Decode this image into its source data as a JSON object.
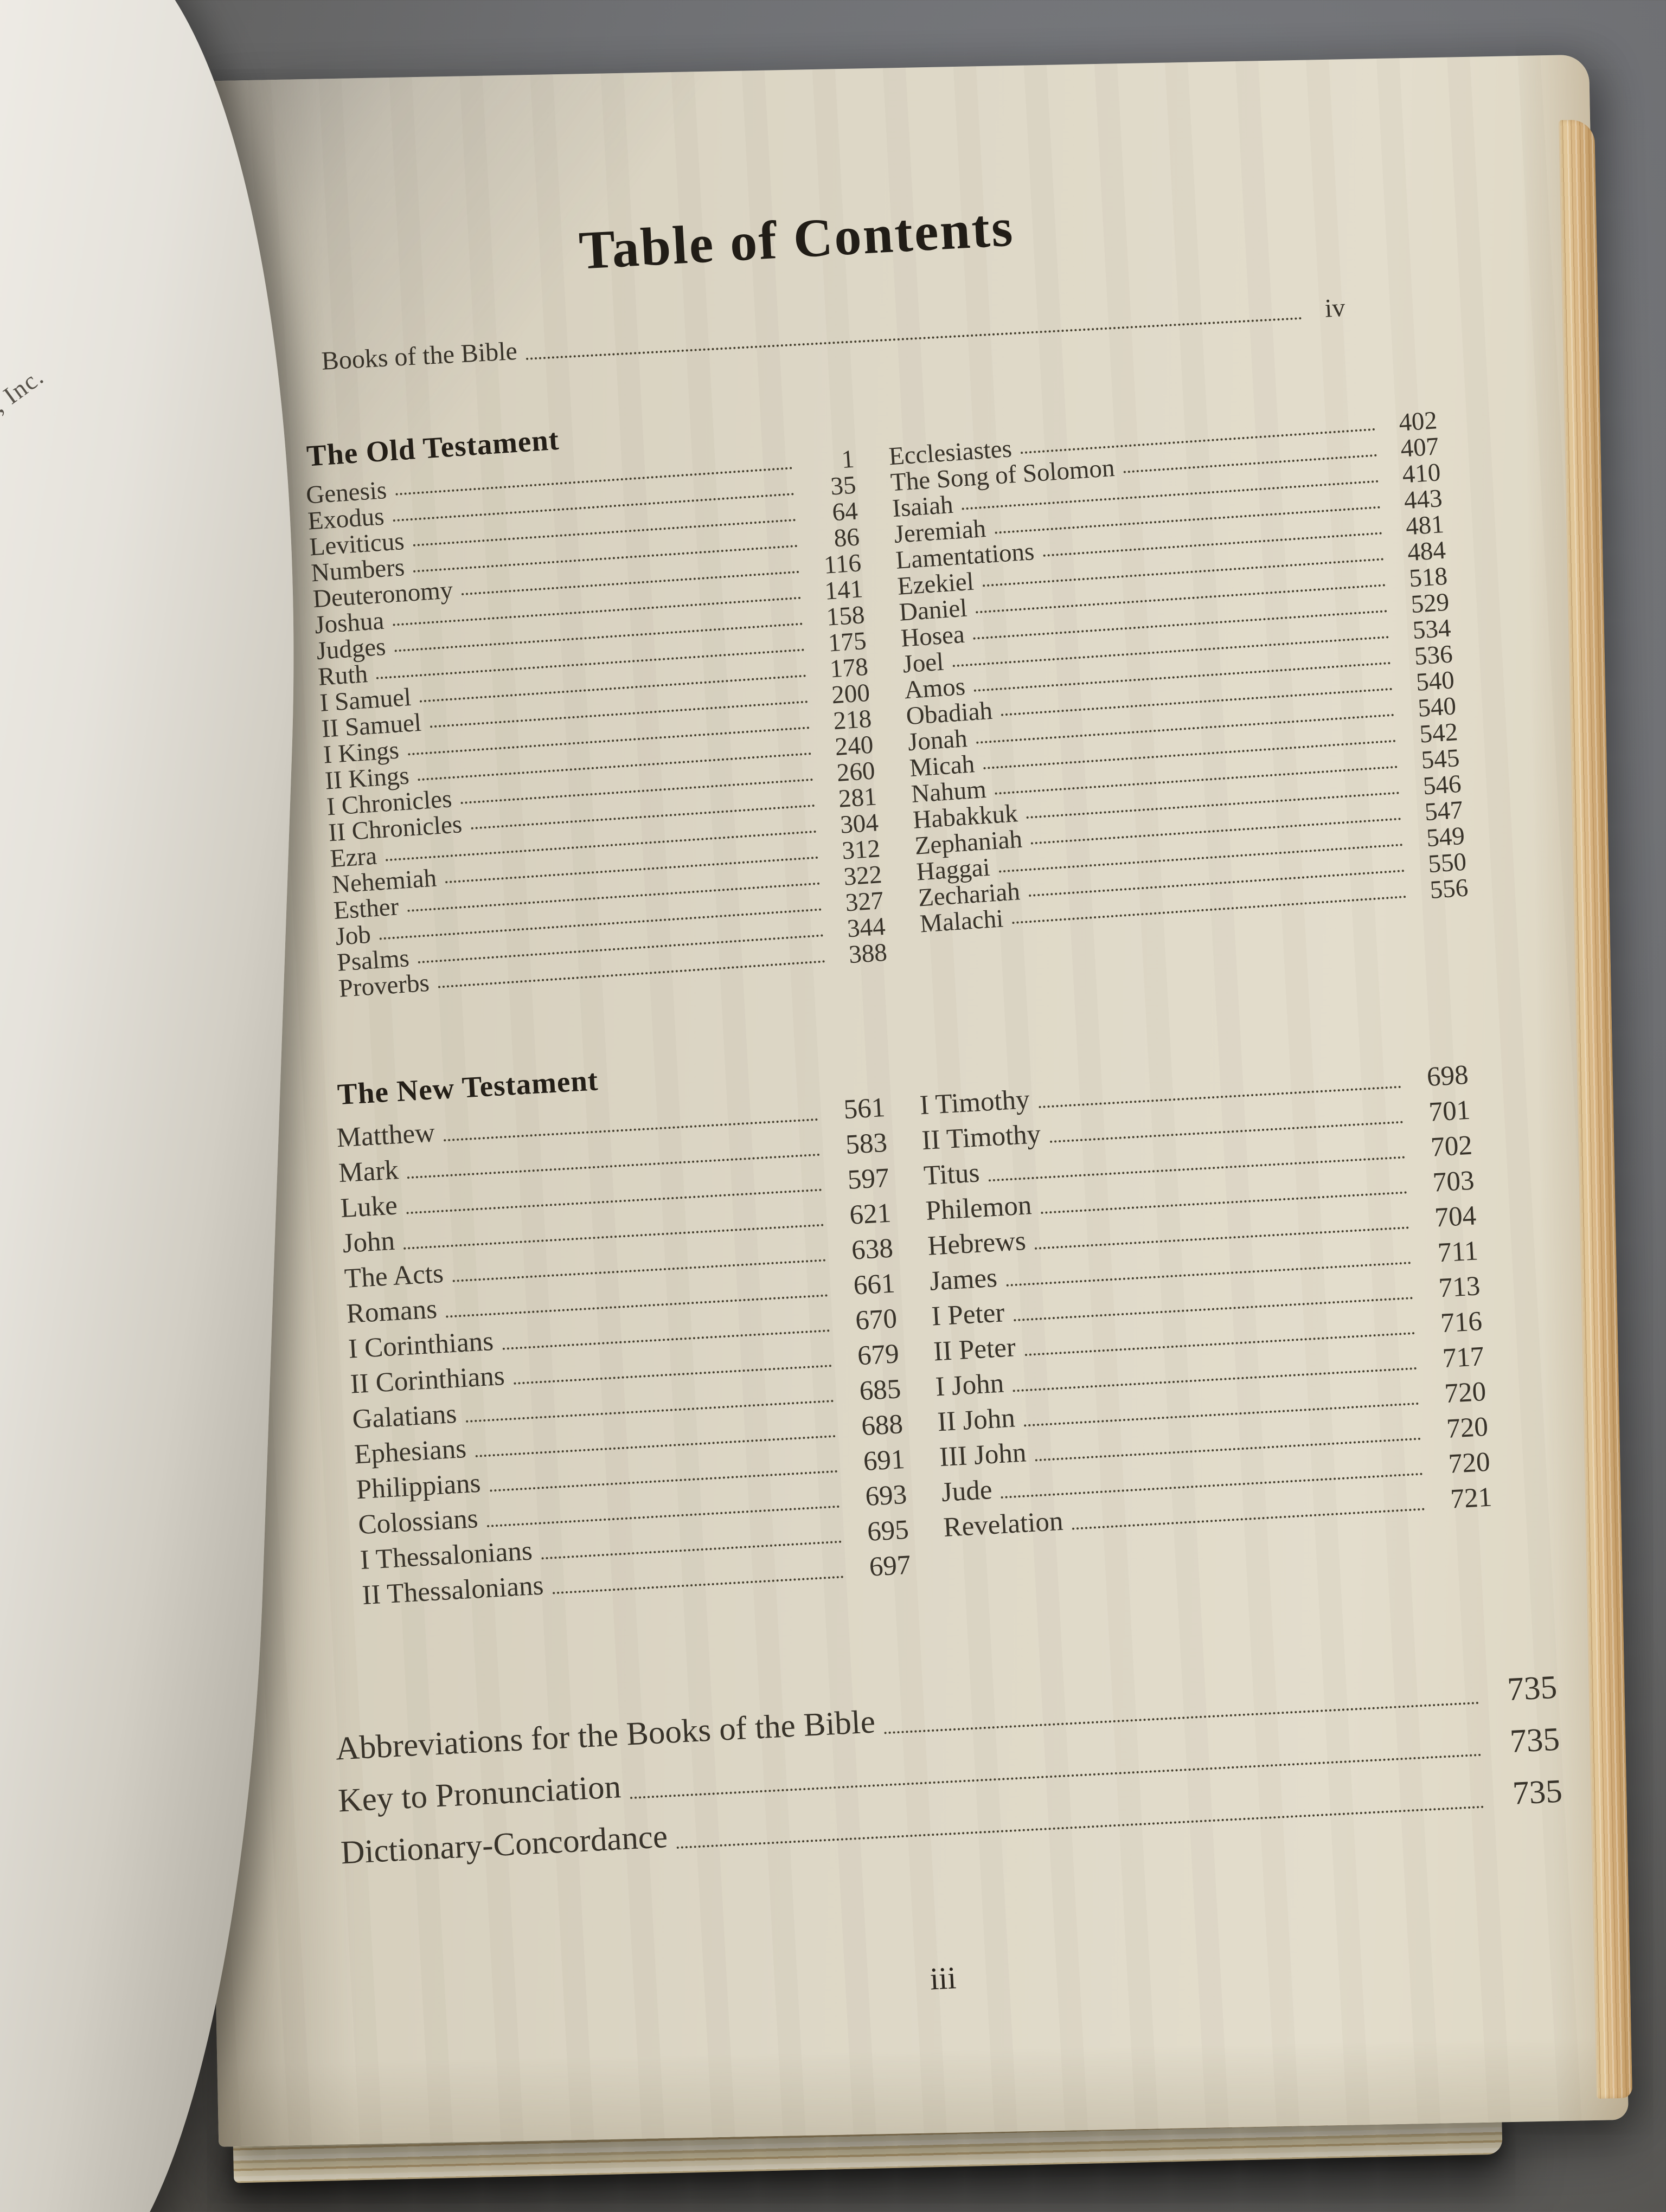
{
  "title": "Table of Contents",
  "frontmatter": {
    "label": "Books of the Bible",
    "page": "iv"
  },
  "old_testament": {
    "header": "The Old Testament",
    "left": [
      {
        "label": "Genesis",
        "page": "1"
      },
      {
        "label": "Exodus",
        "page": "35"
      },
      {
        "label": "Leviticus",
        "page": "64"
      },
      {
        "label": "Numbers",
        "page": "86"
      },
      {
        "label": "Deuteronomy",
        "page": "116"
      },
      {
        "label": "Joshua",
        "page": "141"
      },
      {
        "label": "Judges",
        "page": "158"
      },
      {
        "label": "Ruth",
        "page": "175"
      },
      {
        "label": "I Samuel",
        "page": "178"
      },
      {
        "label": "II Samuel",
        "page": "200"
      },
      {
        "label": "I Kings",
        "page": "218"
      },
      {
        "label": "II Kings",
        "page": "240"
      },
      {
        "label": "I Chronicles",
        "page": "260"
      },
      {
        "label": "II Chronicles",
        "page": "281"
      },
      {
        "label": "Ezra",
        "page": "304"
      },
      {
        "label": "Nehemiah",
        "page": "312"
      },
      {
        "label": "Esther",
        "page": "322"
      },
      {
        "label": "Job",
        "page": "327"
      },
      {
        "label": "Psalms",
        "page": "344"
      },
      {
        "label": "Proverbs",
        "page": "388"
      }
    ],
    "right": [
      {
        "label": "Ecclesiastes",
        "page": "402"
      },
      {
        "label": "The Song of Solomon",
        "page": "407"
      },
      {
        "label": "Isaiah",
        "page": "410"
      },
      {
        "label": "Jeremiah",
        "page": "443"
      },
      {
        "label": "Lamentations",
        "page": "481"
      },
      {
        "label": "Ezekiel",
        "page": "484"
      },
      {
        "label": "Daniel",
        "page": "518"
      },
      {
        "label": "Hosea",
        "page": "529"
      },
      {
        "label": "Joel",
        "page": "534"
      },
      {
        "label": "Amos",
        "page": "536"
      },
      {
        "label": "Obadiah",
        "page": "540"
      },
      {
        "label": "Jonah",
        "page": "540"
      },
      {
        "label": "Micah",
        "page": "542"
      },
      {
        "label": "Nahum",
        "page": "545"
      },
      {
        "label": "Habakkuk",
        "page": "546"
      },
      {
        "label": "Zephaniah",
        "page": "547"
      },
      {
        "label": "Haggai",
        "page": "549"
      },
      {
        "label": "Zechariah",
        "page": "550"
      },
      {
        "label": "Malachi",
        "page": "556"
      }
    ]
  },
  "new_testament": {
    "header": "The New Testament",
    "left": [
      {
        "label": "Matthew",
        "page": "561"
      },
      {
        "label": "Mark",
        "page": "583"
      },
      {
        "label": "Luke",
        "page": "597"
      },
      {
        "label": "John",
        "page": "621"
      },
      {
        "label": "The Acts",
        "page": "638"
      },
      {
        "label": "Romans",
        "page": "661"
      },
      {
        "label": "I Corinthians",
        "page": "670"
      },
      {
        "label": "II Corinthians",
        "page": "679"
      },
      {
        "label": "Galatians",
        "page": "685"
      },
      {
        "label": "Ephesians",
        "page": "688"
      },
      {
        "label": "Philippians",
        "page": "691"
      },
      {
        "label": "Colossians",
        "page": "693"
      },
      {
        "label": "I Thessalonians",
        "page": "695"
      },
      {
        "label": "II Thessalonians",
        "page": "697"
      }
    ],
    "right": [
      {
        "label": "I Timothy",
        "page": "698"
      },
      {
        "label": "II Timothy",
        "page": "701"
      },
      {
        "label": "Titus",
        "page": "702"
      },
      {
        "label": "Philemon",
        "page": "703"
      },
      {
        "label": "Hebrews",
        "page": "704"
      },
      {
        "label": "James",
        "page": "711"
      },
      {
        "label": "I Peter",
        "page": "713"
      },
      {
        "label": "II Peter",
        "page": "716"
      },
      {
        "label": "I John",
        "page": "717"
      },
      {
        "label": "II John",
        "page": "720"
      },
      {
        "label": "III John",
        "page": "720"
      },
      {
        "label": "Jude",
        "page": "720"
      },
      {
        "label": "Revelation",
        "page": "721"
      }
    ]
  },
  "backmatter": [
    {
      "label": "Abbreviations for the Books of the Bible",
      "page": "735"
    },
    {
      "label": "Key to Pronunciation",
      "page": "735"
    },
    {
      "label": "Dictionary-Concordance",
      "page": "735"
    }
  ],
  "page_number": "iii",
  "left_page_edge_text": "lson, Inc."
}
